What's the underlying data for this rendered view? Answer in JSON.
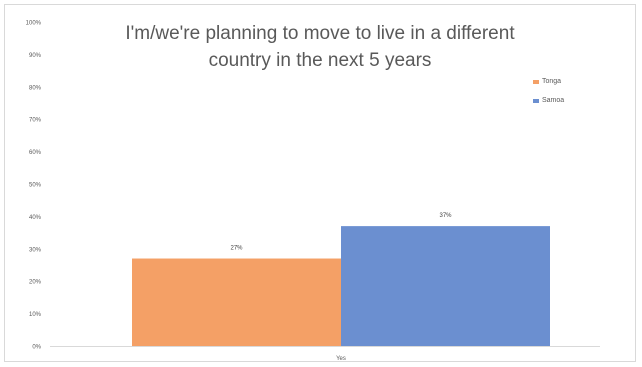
{
  "chart_data": {
    "type": "bar",
    "title": "I'm/we're planning to move to live in a different country in the next 5 years",
    "categories": [
      "Yes"
    ],
    "series": [
      {
        "name": "Tonga",
        "values": [
          27
        ],
        "color": "#f4a066",
        "label": "27%"
      },
      {
        "name": "Samoa",
        "values": [
          37
        ],
        "color": "#6b8fd0",
        "label": "37%"
      }
    ],
    "yticks": [
      "0%",
      "10%",
      "20%",
      "30%",
      "40%",
      "50%",
      "60%",
      "70%",
      "80%",
      "90%",
      "100%"
    ],
    "ylim": [
      0,
      100
    ],
    "xlabel": "",
    "ylabel": "",
    "grid": false,
    "legend": "top-right"
  }
}
